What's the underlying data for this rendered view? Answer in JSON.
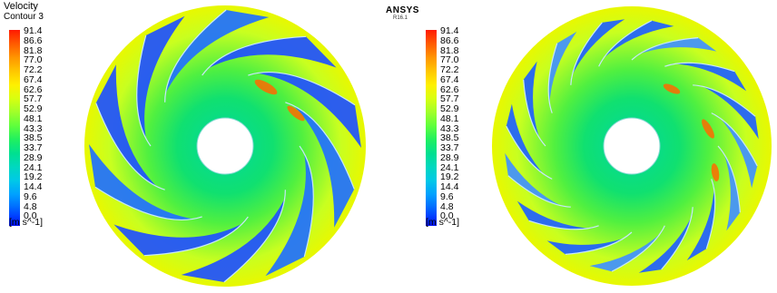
{
  "title": {
    "line1": "Velocity",
    "line2": "Contour 3"
  },
  "brand": {
    "name": "ANSYS",
    "version": "R16.1"
  },
  "legend": {
    "ticks": [
      "91.4",
      "86.6",
      "81.8",
      "77.0",
      "72.2",
      "67.4",
      "62.6",
      "57.7",
      "52.9",
      "48.1",
      "43.3",
      "38.5",
      "33.7",
      "28.9",
      "24.1",
      "19.2",
      "14.4",
      "9.6",
      "4.8",
      "0.0"
    ],
    "unit": "[m s^-1]"
  },
  "colors": {
    "scale": [
      "#ff1a00",
      "#ff5a00",
      "#ff9500",
      "#ffc600",
      "#fff000",
      "#d8ff10",
      "#a0ff2a",
      "#5eff3c",
      "#20f060",
      "#00e090",
      "#00d8c0",
      "#00c8e8",
      "#00a0ff",
      "#0070ff",
      "#0040ff",
      "#0010f0"
    ],
    "background": "#ffffff"
  }
}
